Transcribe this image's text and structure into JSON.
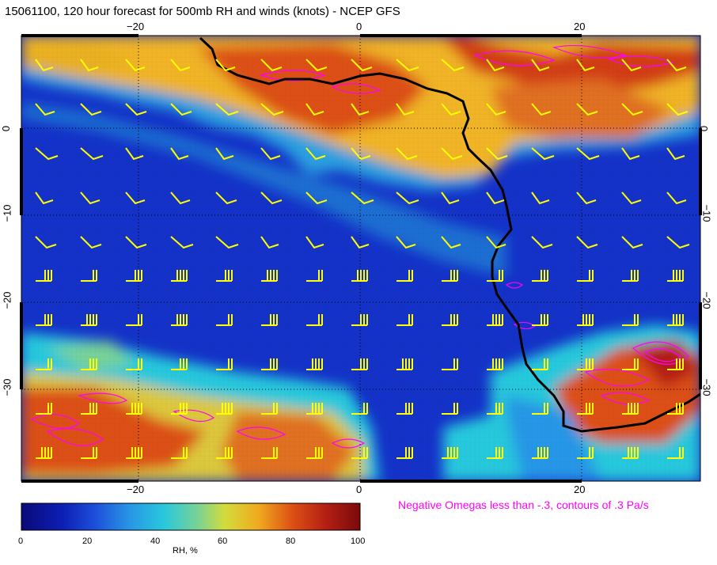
{
  "title": "15061100, 120 hour forecast for 500mb RH and winds (knots) - NCEP GFS",
  "map": {
    "lon_ticks": [
      "−20",
      "0",
      "20"
    ],
    "lat_ticks": [
      "0",
      "−10",
      "−20",
      "−30"
    ],
    "coastline_color": "#000000",
    "wind_barb_color": "#ffff00",
    "omega_contour_color": "#ff00ff"
  },
  "omega_note": "Negative Omegas less than -.3, contours of .3 Pa/s",
  "colorbar": {
    "label": "RH, %",
    "ticks": [
      "0",
      "20",
      "40",
      "60",
      "80",
      "100"
    ],
    "colors": [
      "#0a0a78",
      "#1e50dc",
      "#28c8dc",
      "#d2dc3c",
      "#dc5014",
      "#7a0a0a"
    ]
  }
}
